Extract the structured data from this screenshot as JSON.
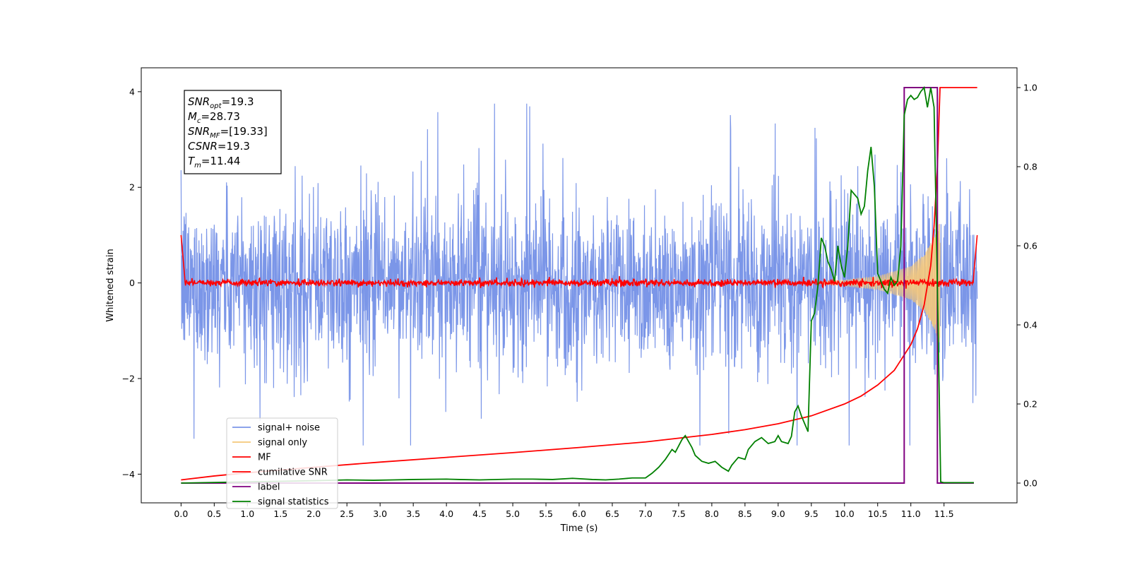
{
  "chart_data": {
    "type": "line",
    "xlabel": "Time (s)",
    "ylabel": "Whitened strain",
    "xlim": [
      -0.6,
      12.6
    ],
    "ylim": [
      -4.6,
      4.5
    ],
    "y2lim": [
      -0.05,
      1.05
    ],
    "x_ticks": [
      0.0,
      0.5,
      1.0,
      1.5,
      2.0,
      2.5,
      3.0,
      3.5,
      4.0,
      4.5,
      5.0,
      5.5,
      6.0,
      6.5,
      7.0,
      7.5,
      8.0,
      8.5,
      9.0,
      9.5,
      10.0,
      10.5,
      11.0,
      11.5
    ],
    "x_tick_labels": [
      "0.0",
      "0.5",
      "1.0",
      "1.5",
      "2.0",
      "2.5",
      "3.0",
      "3.5",
      "4.0",
      "4.5",
      "5.0",
      "5.5",
      "6.0",
      "6.5",
      "7.0",
      "7.5",
      "8.0",
      "8.5",
      "9.0",
      "9.5",
      "10.0",
      "10.5",
      "11.0",
      "11.5"
    ],
    "y_ticks": [
      4,
      2,
      0,
      -2,
      -4
    ],
    "y_tick_labels": [
      "4",
      "2",
      "0",
      "−2",
      "−4"
    ],
    "y2_ticks": [
      1.0,
      0.8,
      0.6,
      0.4,
      0.2,
      0.0
    ],
    "y2_tick_labels": [
      "1.0",
      "0.8",
      "0.6",
      "0.4",
      "0.2",
      "0.0"
    ],
    "grid": false,
    "legend_position": "bottom-left",
    "info_box": {
      "snr_opt": {
        "label": "SNR",
        "sub": "opt",
        "value": "=19.3"
      },
      "mc": {
        "label": "M",
        "sub": "c",
        "value": "=28.73"
      },
      "snr_mf": {
        "label": "SNR",
        "sub": "MF",
        "value": "=[19.33]"
      },
      "csnr": {
        "label": "CSNR",
        "sub": "",
        "value": "=19.3"
      },
      "tm": {
        "label": "T",
        "sub": "m",
        "value": "=11.44"
      }
    },
    "series": [
      {
        "name": "signal+ noise",
        "color": "#7b96e8",
        "axis": "left",
        "description_values": "noise band roughly between -2.5 and 2.5 with spikes up to 3.7",
        "x_range": [
          0.0,
          12.0
        ]
      },
      {
        "name": "signal only",
        "color": "#f5c87a",
        "axis": "left",
        "x_range": [
          9.6,
          11.45
        ],
        "envelope_points": [
          [
            9.6,
            0.02
          ],
          [
            10.0,
            0.06
          ],
          [
            10.5,
            0.14
          ],
          [
            11.0,
            0.35
          ],
          [
            11.2,
            0.6
          ],
          [
            11.35,
            0.95
          ],
          [
            11.44,
            1.3
          ]
        ]
      },
      {
        "name": "MF",
        "color": "#ff0000",
        "axis": "left",
        "x_range": [
          0.0,
          12.0
        ],
        "start_value": 1.0,
        "baseline": 0.0,
        "end_value": 1.0
      },
      {
        "name": "cumilative SNR",
        "color": "#ff0000",
        "axis": "right",
        "x": [
          0.0,
          0.5,
          1.0,
          2.0,
          3.0,
          4.0,
          5.0,
          6.0,
          7.0,
          8.0,
          8.5,
          9.0,
          9.5,
          10.0,
          10.25,
          10.5,
          10.75,
          11.0,
          11.1,
          11.2,
          11.3,
          11.35,
          11.4,
          11.44,
          11.5,
          12.0
        ],
        "values": [
          0.008,
          0.018,
          0.026,
          0.04,
          0.053,
          0.065,
          0.077,
          0.09,
          0.104,
          0.123,
          0.135,
          0.15,
          0.17,
          0.2,
          0.22,
          0.248,
          0.285,
          0.35,
          0.39,
          0.45,
          0.55,
          0.65,
          0.8,
          1.0,
          1.0,
          1.0
        ]
      },
      {
        "name": "label",
        "color": "#800080",
        "axis": "right",
        "x": [
          0.0,
          10.9,
          10.9,
          11.4,
          11.4,
          11.95
        ],
        "values": [
          0.0,
          0.0,
          1.0,
          1.0,
          0.0,
          0.0
        ]
      },
      {
        "name": "signal statistics",
        "color": "#008000",
        "axis": "right",
        "x": [
          0.0,
          1.0,
          2.0,
          2.5,
          2.9,
          3.2,
          3.5,
          4.0,
          4.2,
          4.5,
          5.0,
          5.3,
          5.6,
          5.9,
          6.2,
          6.4,
          6.6,
          6.8,
          7.0,
          7.1,
          7.2,
          7.3,
          7.4,
          7.45,
          7.55,
          7.6,
          7.7,
          7.75,
          7.85,
          7.95,
          8.05,
          8.15,
          8.25,
          8.3,
          8.4,
          8.5,
          8.55,
          8.65,
          8.75,
          8.85,
          8.95,
          9.0,
          9.05,
          9.15,
          9.2,
          9.25,
          9.3,
          9.35,
          9.4,
          9.45,
          9.5,
          9.55,
          9.6,
          9.65,
          9.7,
          9.75,
          9.8,
          9.85,
          9.9,
          9.95,
          10.0,
          10.05,
          10.1,
          10.2,
          10.25,
          10.3,
          10.35,
          10.4,
          10.45,
          10.5,
          10.55,
          10.6,
          10.65,
          10.7,
          10.75,
          10.8,
          10.85,
          10.9,
          10.95,
          11.0,
          11.05,
          11.1,
          11.15,
          11.2,
          11.25,
          11.3,
          11.35,
          11.4,
          11.45,
          11.5,
          11.95
        ],
        "values": [
          0.0,
          0.003,
          0.006,
          0.008,
          0.007,
          0.008,
          0.009,
          0.01,
          0.009,
          0.008,
          0.01,
          0.01,
          0.009,
          0.012,
          0.009,
          0.008,
          0.01,
          0.013,
          0.013,
          0.025,
          0.04,
          0.06,
          0.085,
          0.078,
          0.11,
          0.12,
          0.09,
          0.07,
          0.055,
          0.05,
          0.055,
          0.04,
          0.03,
          0.045,
          0.065,
          0.06,
          0.085,
          0.105,
          0.115,
          0.1,
          0.105,
          0.12,
          0.105,
          0.1,
          0.118,
          0.18,
          0.195,
          0.17,
          0.15,
          0.13,
          0.41,
          0.43,
          0.5,
          0.62,
          0.6,
          0.56,
          0.54,
          0.51,
          0.6,
          0.55,
          0.52,
          0.6,
          0.74,
          0.72,
          0.68,
          0.7,
          0.79,
          0.85,
          0.75,
          0.53,
          0.51,
          0.49,
          0.48,
          0.52,
          0.5,
          0.51,
          0.6,
          0.93,
          0.97,
          0.98,
          0.97,
          0.975,
          0.99,
          1.0,
          0.95,
          1.0,
          0.95,
          0.5,
          0.003,
          0.001,
          0.001
        ]
      }
    ]
  }
}
